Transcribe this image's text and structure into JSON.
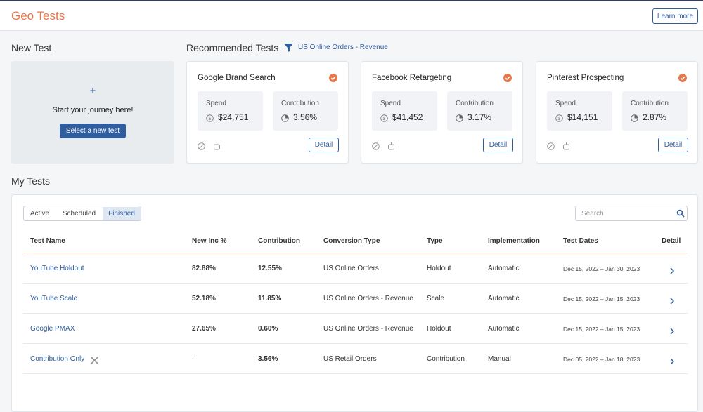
{
  "header": {
    "title": "Geo Tests",
    "learn_more": "Learn more"
  },
  "new_test": {
    "heading": "New Test",
    "prompt": "Start your journey here!",
    "button": "Select a new test"
  },
  "recommended": {
    "heading": "Recommended Tests",
    "filter": "US Online Orders - Revenue",
    "cards": [
      {
        "name": "Google Brand Search",
        "spend_label": "Spend",
        "spend": "$24,751",
        "contribution_label": "Contribution",
        "contribution": "3.56%",
        "detail": "Detail"
      },
      {
        "name": "Facebook Retargeting",
        "spend_label": "Spend",
        "spend": "$41,452",
        "contribution_label": "Contribution",
        "contribution": "3.17%",
        "detail": "Detail"
      },
      {
        "name": "Pinterest Prospecting",
        "spend_label": "Spend",
        "spend": "$14,151",
        "contribution_label": "Contribution",
        "contribution": "2.87%",
        "detail": "Detail"
      }
    ]
  },
  "my_tests": {
    "heading": "My Tests",
    "tabs": [
      "Active",
      "Scheduled",
      "Finished"
    ],
    "active_tab": 2,
    "search_placeholder": "Search",
    "table": {
      "columns": [
        "Test Name",
        "New Inc %",
        "Contribution",
        "Conversion Type",
        "Type",
        "Implementation",
        "Test Dates",
        "Detail"
      ],
      "rows": [
        [
          "YouTube Holdout",
          "82.88%",
          "12.55%",
          "US Online Orders",
          "Holdout",
          "Automatic",
          "Dec 15, 2022 – Jan 30, 2023"
        ],
        [
          "YouTube Scale",
          "52.18%",
          "11.85%",
          "US Online Orders - Revenue",
          "Scale",
          "Automatic",
          "Dec 15, 2022 – Jan 15, 2023"
        ],
        [
          "Google PMAX",
          "27.65%",
          "0.60%",
          "US Online Orders - Revenue",
          "Holdout",
          "Automatic",
          "Dec 15, 2022 – Jan 15, 2023"
        ],
        [
          "Contribution Only",
          "–",
          "3.56%",
          "US Retail Orders",
          "Contribution",
          "Manual",
          "Dec 05, 2022 – Jan 18, 2023"
        ]
      ]
    }
  }
}
